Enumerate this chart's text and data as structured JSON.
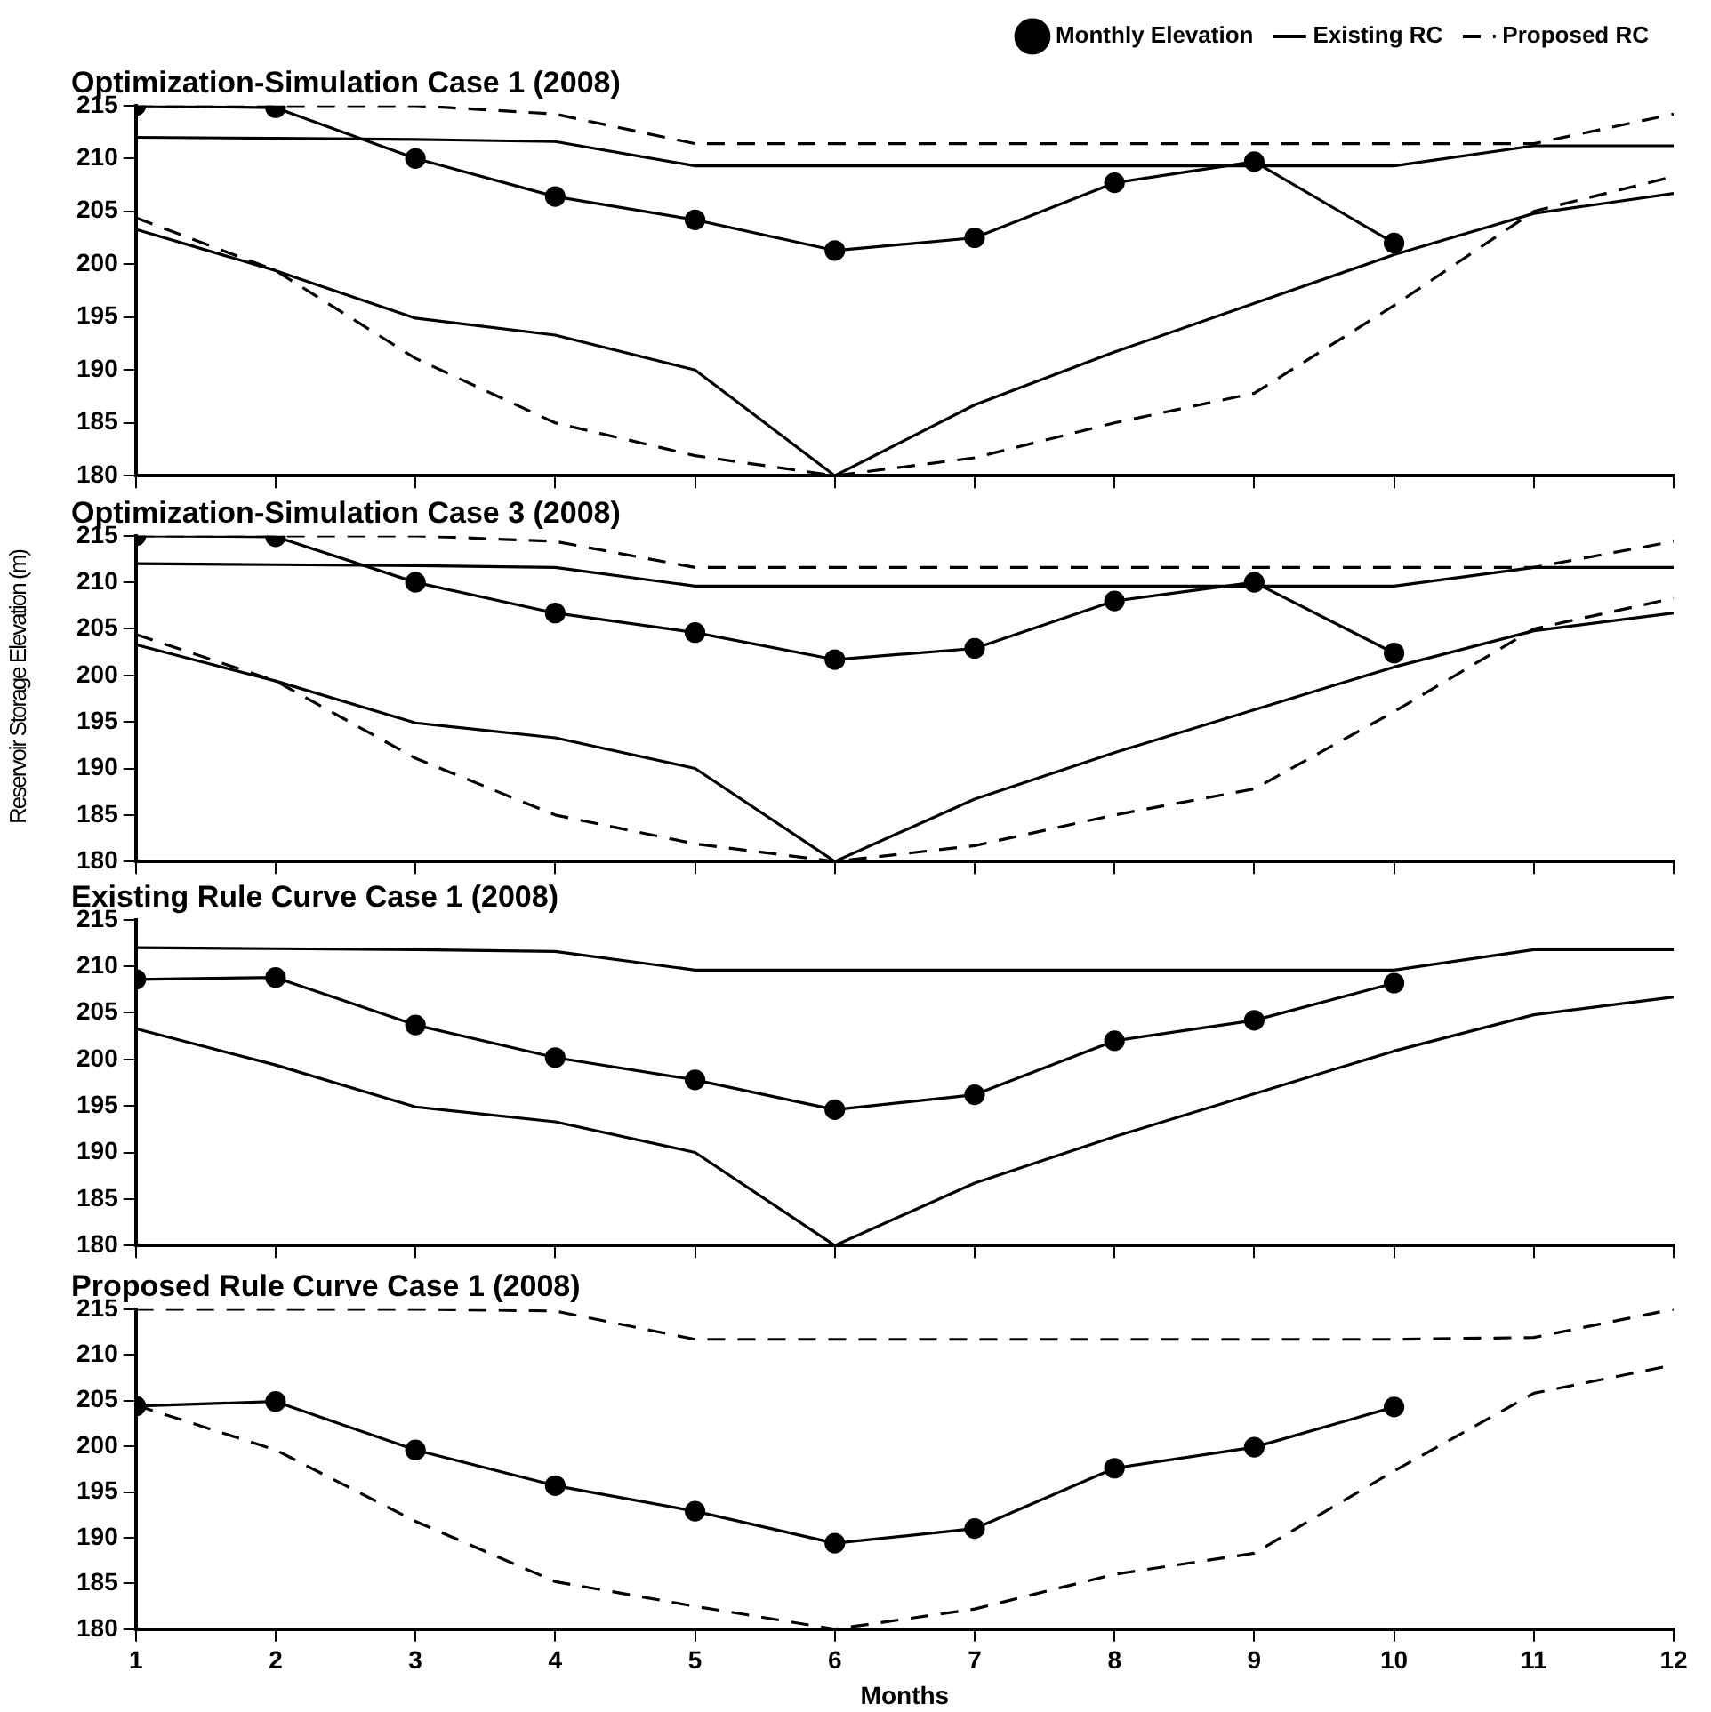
{
  "chart_data": [
    {
      "type": "line",
      "title": "Optimization-Simulation Case 1 (2008)",
      "x": [
        1,
        2,
        3,
        4,
        5,
        6,
        7,
        8,
        9,
        10,
        11,
        12
      ],
      "xlim": [
        1,
        12
      ],
      "xticks": [
        1,
        2,
        3,
        4,
        5,
        6,
        7,
        8,
        9,
        10,
        11,
        12
      ],
      "ylim": [
        180,
        215
      ],
      "yticks": [
        180,
        185,
        190,
        195,
        200,
        205,
        210,
        215
      ],
      "tick_labels": "y",
      "legend": "top right",
      "series": [
        {
          "name": "Monthly Elevation",
          "color": "#000000",
          "marker": "circle",
          "line_style": "solid",
          "values": [
            215,
            214.8,
            210,
            206.4,
            204.2,
            201.3,
            202.5,
            207.7,
            209.7,
            202,
            null,
            null
          ]
        },
        {
          "name": "Existing RC",
          "color": "#000000",
          "marker": "none",
          "line_style": "solid",
          "values": [
            212,
            211.9,
            211.8,
            211.6,
            209.3,
            209.3,
            209.3,
            209.3,
            209.3,
            209.3,
            211.2,
            211.2
          ]
        },
        {
          "color": "#000000",
          "marker": "none",
          "line_style": "solid",
          "values": [
            203.3,
            199.4,
            194.9,
            193.3,
            190,
            180,
            186.7,
            191.7,
            196.3,
            200.9,
            204.8,
            206.7
          ]
        },
        {
          "name": "Proposed RC",
          "color": "#000000",
          "marker": "none",
          "line_style": "dashed",
          "values": [
            215,
            215,
            215,
            214.2,
            211.4,
            211.4,
            211.4,
            211.4,
            211.4,
            211.4,
            211.4,
            214.2
          ]
        },
        {
          "color": "#000000",
          "marker": "none",
          "line_style": "dashed",
          "values": [
            204.4,
            199.4,
            191.1,
            185,
            181.9,
            180,
            181.7,
            185,
            187.8,
            196.1,
            205,
            208.3
          ]
        }
      ]
    },
    {
      "type": "line",
      "title": "Optimization-Simulation Case 3 (2008)",
      "ylabel": "Reservoir Storage Elevation (m)",
      "x": [
        1,
        2,
        3,
        4,
        5,
        6,
        7,
        8,
        9,
        10,
        11,
        12
      ],
      "xlim": [
        1,
        12
      ],
      "xticks": [
        1,
        2,
        3,
        4,
        5,
        6,
        7,
        8,
        9,
        10,
        11,
        12
      ],
      "ylim": [
        180,
        215
      ],
      "yticks": [
        180,
        185,
        190,
        195,
        200,
        205,
        210,
        215
      ],
      "tick_labels": "y",
      "series": [
        {
          "color": "#000000",
          "marker": "circle",
          "line_style": "solid",
          "values": [
            215,
            214.9,
            210,
            206.7,
            204.6,
            201.7,
            202.9,
            208,
            210,
            202.4,
            null,
            null
          ]
        },
        {
          "color": "#000000",
          "marker": "none",
          "line_style": "solid",
          "values": [
            212,
            211.9,
            211.8,
            211.6,
            209.6,
            209.6,
            209.6,
            209.6,
            209.6,
            209.6,
            211.6,
            211.6
          ]
        },
        {
          "color": "#000000",
          "marker": "none",
          "line_style": "solid",
          "values": [
            203.3,
            199.4,
            194.9,
            193.3,
            190,
            180,
            186.7,
            191.7,
            196.3,
            200.9,
            204.8,
            206.7
          ]
        },
        {
          "color": "#000000",
          "marker": "none",
          "line_style": "dashed",
          "values": [
            215,
            215,
            215,
            214.4,
            211.6,
            211.6,
            211.6,
            211.6,
            211.6,
            211.6,
            211.6,
            214.4
          ]
        },
        {
          "color": "#000000",
          "marker": "none",
          "line_style": "dashed",
          "values": [
            204.4,
            199.4,
            191.1,
            185,
            181.9,
            180,
            181.7,
            185,
            187.8,
            196.1,
            205,
            208.3
          ]
        }
      ]
    },
    {
      "type": "line",
      "title": "Existing Rule Curve Case 1 (2008)",
      "x": [
        1,
        2,
        3,
        4,
        5,
        6,
        7,
        8,
        9,
        10,
        11,
        12
      ],
      "xlim": [
        1,
        12
      ],
      "xticks": [
        1,
        2,
        3,
        4,
        5,
        6,
        7,
        8,
        9,
        10,
        11,
        12
      ],
      "ylim": [
        180,
        215
      ],
      "yticks": [
        180,
        185,
        190,
        195,
        200,
        205,
        210,
        215
      ],
      "tick_labels": "y",
      "series": [
        {
          "color": "#000000",
          "marker": "circle",
          "line_style": "solid",
          "values": [
            208.6,
            208.8,
            203.7,
            200.2,
            197.8,
            194.6,
            196.2,
            202,
            204.2,
            208.2,
            null,
            null
          ]
        },
        {
          "color": "#000000",
          "marker": "none",
          "line_style": "solid",
          "values": [
            212,
            211.9,
            211.8,
            211.6,
            209.6,
            209.6,
            209.6,
            209.6,
            209.6,
            209.6,
            211.8,
            211.8
          ]
        },
        {
          "color": "#000000",
          "marker": "none",
          "line_style": "solid",
          "values": [
            203.3,
            199.4,
            194.9,
            193.3,
            190,
            180,
            186.7,
            191.7,
            196.3,
            200.9,
            204.8,
            206.7
          ]
        }
      ]
    },
    {
      "type": "line",
      "title": "Proposed Rule Curve Case 1 (2008)",
      "xlabel": "Months",
      "x": [
        1,
        2,
        3,
        4,
        5,
        6,
        7,
        8,
        9,
        10,
        11,
        12
      ],
      "xlim": [
        1,
        12
      ],
      "xticks": [
        1,
        2,
        3,
        4,
        5,
        6,
        7,
        8,
        9,
        10,
        11,
        12
      ],
      "ylim": [
        180,
        215
      ],
      "yticks": [
        180,
        185,
        190,
        195,
        200,
        205,
        210,
        215
      ],
      "series": [
        {
          "color": "#000000",
          "marker": "circle",
          "line_style": "solid",
          "values": [
            204.4,
            204.9,
            199.6,
            195.7,
            192.9,
            189.4,
            191,
            197.6,
            199.9,
            204.3,
            null,
            null
          ]
        },
        {
          "color": "#000000",
          "marker": "none",
          "line_style": "dashed",
          "values": [
            215,
            215,
            215,
            214.8,
            211.7,
            211.7,
            211.7,
            211.7,
            211.7,
            211.7,
            211.9,
            215
          ]
        },
        {
          "color": "#000000",
          "marker": "none",
          "line_style": "dashed",
          "values": [
            204.5,
            199.6,
            191.8,
            185.2,
            182.5,
            180,
            182.2,
            186,
            188.3,
            197.3,
            205.8,
            208.9
          ]
        }
      ]
    }
  ]
}
